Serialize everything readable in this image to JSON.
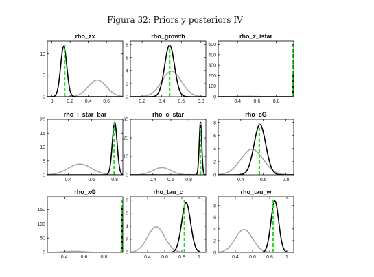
{
  "figure": {
    "title": "Figura 32: Priors y posteriors IV"
  },
  "colors": {
    "prior": "#a8a8a8",
    "posterior": "#000000",
    "mode": "#22dd22"
  },
  "chart_data": [
    {
      "type": "line",
      "title": "rho_zx",
      "xlim": [
        -0.05,
        0.78
      ],
      "ylim": [
        0,
        13
      ],
      "xticks": [
        "0",
        "0.2",
        "0.4",
        "0.6"
      ],
      "xtick_values": [
        0,
        0.2,
        0.4,
        0.6
      ],
      "yticks": [
        "0",
        "5",
        "10"
      ],
      "ytick_values": [
        0,
        5,
        10
      ],
      "prior": {
        "mean": 0.5,
        "sd": 0.1,
        "peak": 3.9
      },
      "posterior": {
        "mean": 0.13,
        "sd": 0.034,
        "peak": 11.8
      },
      "mode": 0.14
    },
    {
      "type": "line",
      "title": "rho_growth",
      "xlim": [
        0.08,
        0.85
      ],
      "ylim": [
        0,
        8.5
      ],
      "xticks": [
        "0.2",
        "0.4",
        "0.6",
        "0.8"
      ],
      "xtick_values": [
        0.2,
        0.4,
        0.6,
        0.8
      ],
      "yticks": [
        "0",
        "2",
        "4",
        "6",
        "8"
      ],
      "ytick_values": [
        0,
        2,
        4,
        6,
        8
      ],
      "prior": {
        "mean": 0.5,
        "sd": 0.1,
        "peak": 3.9
      },
      "posterior": {
        "mean": 0.48,
        "sd": 0.05,
        "peak": 7.9
      },
      "mode": 0.48
    },
    {
      "type": "line",
      "title": "rho_z_istar",
      "xlim": [
        0.2,
        0.98
      ],
      "ylim": [
        0,
        530
      ],
      "xticks": [
        "0.4",
        "0.6",
        "0.8"
      ],
      "xtick_values": [
        0.4,
        0.6,
        0.8
      ],
      "yticks": [
        "0",
        "100",
        "200",
        "300",
        "400",
        "500"
      ],
      "ytick_values": [
        0,
        100,
        200,
        300,
        400,
        500
      ],
      "prior": {
        "mean": 0.5,
        "sd": 0.1,
        "peak": 3.9
      },
      "posterior": {
        "mean": 0.975,
        "sd": 0.0008,
        "peak": 520
      },
      "mode": 0.975
    },
    {
      "type": "line",
      "title": "rho_i_star_bar",
      "xlim": [
        0.22,
        0.87
      ],
      "ylim": [
        0,
        20
      ],
      "xticks": [
        "0.4",
        "0.6",
        "0.8"
      ],
      "xtick_values": [
        0.4,
        0.6,
        0.8
      ],
      "yticks": [
        "0",
        "5",
        "10",
        "15",
        "20"
      ],
      "ytick_values": [
        0,
        5,
        10,
        15,
        20
      ],
      "prior": {
        "mean": 0.5,
        "sd": 0.1,
        "peak": 3.9
      },
      "posterior": {
        "mean": 0.8,
        "sd": 0.021,
        "peak": 18.8
      },
      "mode": 0.795
    },
    {
      "type": "line",
      "title": "rho_c_star",
      "xlim": [
        0.15,
        0.99
      ],
      "ylim": [
        0,
        30
      ],
      "xticks": [
        "0.4",
        "0.6",
        "0.8"
      ],
      "xtick_values": [
        0.4,
        0.6,
        0.8
      ],
      "yticks": [
        "0",
        "10",
        "20",
        "30"
      ],
      "ytick_values": [
        0,
        10,
        20,
        30
      ],
      "prior": {
        "mean": 0.5,
        "sd": 0.1,
        "peak": 3.9
      },
      "posterior": {
        "mean": 0.93,
        "sd": 0.014,
        "peak": 28.5
      },
      "mode": 0.93
    },
    {
      "type": "line",
      "title": "rho_cG",
      "xlim": [
        0.2,
        0.87
      ],
      "ylim": [
        0,
        8.5
      ],
      "xticks": [
        "0.4",
        "0.6",
        "0.8"
      ],
      "xtick_values": [
        0.4,
        0.6,
        0.8
      ],
      "yticks": [
        "0",
        "2",
        "4",
        "6",
        "8"
      ],
      "ytick_values": [
        0,
        2,
        4,
        6,
        8
      ],
      "prior": {
        "mean": 0.5,
        "sd": 0.1,
        "peak": 3.9
      },
      "posterior": {
        "mean": 0.57,
        "sd": 0.052,
        "peak": 7.7
      },
      "mode": 0.565
    },
    {
      "type": "line",
      "title": "rho_xG",
      "xlim": [
        0.23,
        0.99
      ],
      "ylim": [
        0,
        195
      ],
      "xticks": [
        "0.4",
        "0.6",
        "0.8"
      ],
      "xtick_values": [
        0.4,
        0.6,
        0.8
      ],
      "yticks": [
        "0",
        "50",
        "100",
        "150"
      ],
      "ytick_values": [
        0,
        50,
        100,
        150
      ],
      "prior": {
        "mean": 0.5,
        "sd": 0.1,
        "peak": 3.9
      },
      "posterior": {
        "mean": 0.98,
        "sd": 0.002,
        "peak": 190
      },
      "mode": 0.98
    },
    {
      "type": "line",
      "title": "rho_tau_c",
      "xlim": [
        0.2,
        1.08
      ],
      "ylim": [
        0,
        8.5
      ],
      "xticks": [
        "0.4",
        "0.6",
        "0.8",
        "1"
      ],
      "xtick_values": [
        0.4,
        0.6,
        0.8,
        1.0
      ],
      "yticks": [
        "0",
        "2",
        "4",
        "6",
        "8"
      ],
      "ytick_values": [
        0,
        2,
        4,
        6,
        8
      ],
      "prior": {
        "mean": 0.5,
        "sd": 0.1,
        "peak": 3.9
      },
      "posterior": {
        "mean": 0.85,
        "sd": 0.052,
        "peak": 7.6
      },
      "mode": 0.83
    },
    {
      "type": "line",
      "title": "rho_tau_w",
      "xlim": [
        0.2,
        1.08
      ],
      "ylim": [
        0,
        9.5
      ],
      "xticks": [
        "0.4",
        "0.6",
        "0.8",
        "1"
      ],
      "xtick_values": [
        0.4,
        0.6,
        0.8,
        1.0
      ],
      "yticks": [
        "0",
        "2",
        "4",
        "6",
        "8"
      ],
      "ytick_values": [
        0,
        2,
        4,
        6,
        8
      ],
      "prior": {
        "mean": 0.5,
        "sd": 0.1,
        "peak": 3.9
      },
      "posterior": {
        "mean": 0.86,
        "sd": 0.045,
        "peak": 8.8
      },
      "mode": 0.84
    }
  ]
}
